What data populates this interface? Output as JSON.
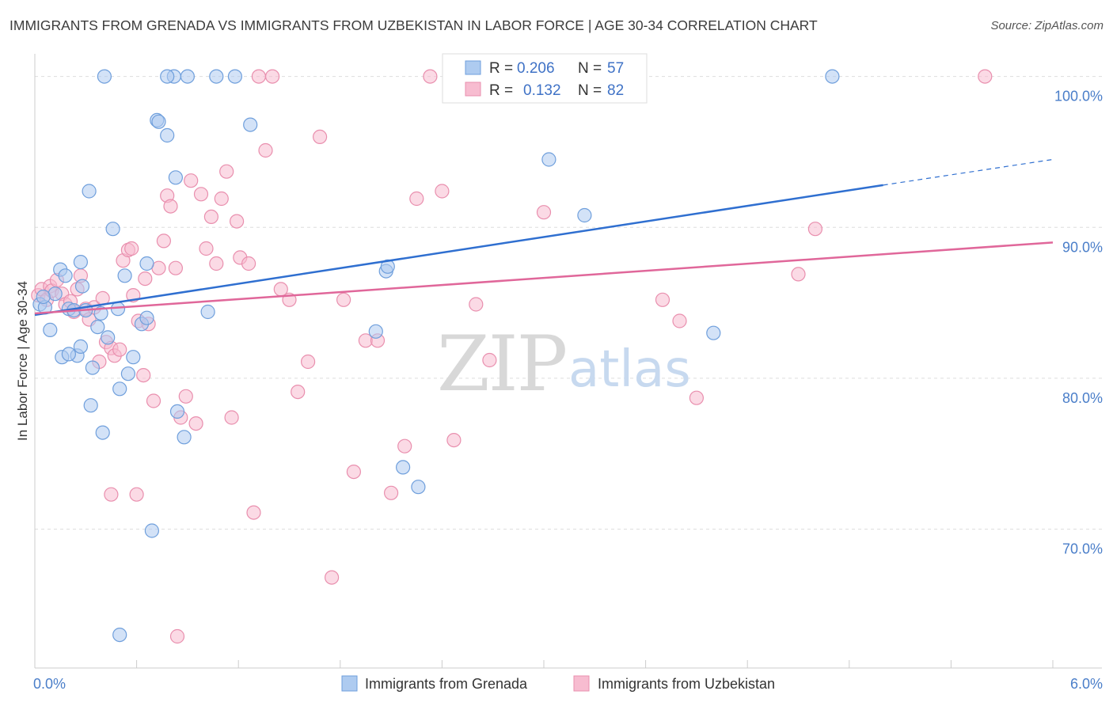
{
  "title": "IMMIGRANTS FROM GRENADA VS IMMIGRANTS FROM UZBEKISTAN IN LABOR FORCE | AGE 30-34 CORRELATION CHART",
  "source": "Source: ZipAtlas.com",
  "watermark": {
    "zip": "ZIP",
    "atlas": "atlas"
  },
  "colors": {
    "grenada_fill": "#aecbf0",
    "grenada_stroke": "#6f9fdc",
    "grenada_line": "#2f6fd0",
    "uzbek_fill": "#f7bcd0",
    "uzbek_stroke": "#e98fae",
    "uzbek_line": "#e0679a",
    "tick_text": "#4a7ec9",
    "grid": "#dddddd"
  },
  "legend": {
    "rows": [
      {
        "r_label": "R =",
        "r_value": "0.206",
        "n_label": "N =",
        "n_value": "57",
        "series": "grenada"
      },
      {
        "r_label": "R =",
        "r_value": "0.132",
        "n_label": "N =",
        "n_value": "82",
        "series": "uzbek"
      }
    ]
  },
  "chart_data": {
    "type": "scatter",
    "xlabel": "",
    "ylabel": "In Labor Force | Age 30-34",
    "xlim": [
      0,
      6
    ],
    "ylim": [
      60.8,
      101.5
    ],
    "x_tick_labels": [
      {
        "value": 0,
        "label": "0.0%"
      },
      {
        "value": 6,
        "label": "6.0%"
      }
    ],
    "y_ticks": [
      {
        "value": 70,
        "label": "70.0%"
      },
      {
        "value": 80,
        "label": "80.0%"
      },
      {
        "value": 90,
        "label": "90.0%"
      },
      {
        "value": 100,
        "label": "100.0%"
      }
    ],
    "grid": "horizontal dashed",
    "legend_position": "top-center",
    "series": [
      {
        "name": "Immigrants from Grenada",
        "key": "grenada",
        "trend": {
          "x0": 0,
          "y0": 84.2,
          "x1": 5.0,
          "y1": 92.8,
          "dashed_to_x": 6.0,
          "dashed_to_y": 94.5
        },
        "points": [
          [
            0.03,
            84.9
          ],
          [
            0.06,
            84.7
          ],
          [
            0.09,
            83.2
          ],
          [
            0.12,
            85.6
          ],
          [
            0.15,
            87.2
          ],
          [
            0.18,
            86.8
          ],
          [
            0.2,
            84.6
          ],
          [
            0.23,
            84.5
          ],
          [
            0.25,
            81.5
          ],
          [
            0.28,
            86.1
          ],
          [
            0.16,
            81.4
          ],
          [
            0.2,
            81.6
          ],
          [
            0.27,
            82.1
          ],
          [
            0.3,
            84.5
          ],
          [
            0.34,
            80.7
          ],
          [
            0.37,
            83.4
          ],
          [
            0.39,
            84.3
          ],
          [
            0.43,
            82.7
          ],
          [
            0.46,
            89.9
          ],
          [
            0.49,
            84.6
          ],
          [
            0.53,
            86.8
          ],
          [
            0.55,
            80.3
          ],
          [
            0.58,
            81.4
          ],
          [
            0.5,
            79.3
          ],
          [
            0.63,
            83.6
          ],
          [
            0.66,
            84.0
          ],
          [
            0.66,
            87.6
          ],
          [
            0.69,
            69.9
          ],
          [
            0.72,
            97.1
          ],
          [
            0.78,
            96.1
          ],
          [
            0.83,
            93.3
          ],
          [
            0.84,
            77.8
          ],
          [
            0.88,
            76.1
          ],
          [
            0.9,
            100.0
          ],
          [
            0.82,
            100.0
          ],
          [
            1.07,
            100.0
          ],
          [
            1.02,
            84.4
          ],
          [
            1.18,
            100.0
          ],
          [
            1.27,
            96.8
          ],
          [
            0.32,
            92.4
          ],
          [
            0.41,
            100.0
          ],
          [
            0.73,
            97.0
          ],
          [
            0.27,
            87.7
          ],
          [
            0.33,
            78.2
          ],
          [
            0.4,
            76.4
          ],
          [
            0.5,
            63.0
          ],
          [
            2.01,
            83.1
          ],
          [
            2.07,
            87.1
          ],
          [
            2.08,
            87.4
          ],
          [
            2.17,
            74.1
          ],
          [
            2.26,
            72.8
          ],
          [
            3.03,
            94.5
          ],
          [
            3.24,
            90.8
          ],
          [
            4.0,
            83.0
          ],
          [
            4.7,
            100.0
          ],
          [
            0.78,
            100.0
          ],
          [
            0.05,
            85.4
          ]
        ]
      },
      {
        "name": "Immigrants from Uzbekistan",
        "key": "uzbek",
        "trend": {
          "x0": 0,
          "y0": 84.3,
          "x1": 6.0,
          "y1": 89.0
        },
        "points": [
          [
            0.02,
            85.5
          ],
          [
            0.04,
            85.9
          ],
          [
            0.07,
            85.2
          ],
          [
            0.09,
            86.1
          ],
          [
            0.1,
            85.8
          ],
          [
            0.13,
            86.5
          ],
          [
            0.16,
            85.6
          ],
          [
            0.18,
            84.9
          ],
          [
            0.21,
            85.1
          ],
          [
            0.23,
            84.4
          ],
          [
            0.25,
            85.9
          ],
          [
            0.27,
            86.8
          ],
          [
            0.3,
            84.6
          ],
          [
            0.32,
            83.9
          ],
          [
            0.35,
            84.7
          ],
          [
            0.38,
            81.1
          ],
          [
            0.4,
            85.3
          ],
          [
            0.42,
            82.4
          ],
          [
            0.45,
            82.0
          ],
          [
            0.47,
            81.5
          ],
          [
            0.5,
            81.9
          ],
          [
            0.52,
            87.8
          ],
          [
            0.55,
            88.5
          ],
          [
            0.58,
            85.5
          ],
          [
            0.61,
            83.8
          ],
          [
            0.64,
            80.2
          ],
          [
            0.67,
            83.6
          ],
          [
            0.7,
            78.5
          ],
          [
            0.73,
            87.3
          ],
          [
            0.76,
            89.1
          ],
          [
            0.78,
            92.1
          ],
          [
            0.8,
            91.4
          ],
          [
            0.83,
            87.3
          ],
          [
            0.86,
            77.4
          ],
          [
            0.89,
            78.8
          ],
          [
            0.92,
            93.1
          ],
          [
            0.95,
            77.0
          ],
          [
            0.98,
            92.2
          ],
          [
            1.01,
            88.6
          ],
          [
            1.04,
            90.7
          ],
          [
            1.07,
            87.6
          ],
          [
            1.1,
            91.9
          ],
          [
            1.13,
            93.7
          ],
          [
            1.16,
            77.4
          ],
          [
            1.19,
            90.4
          ],
          [
            1.21,
            88.0
          ],
          [
            1.26,
            87.6
          ],
          [
            1.29,
            71.1
          ],
          [
            1.32,
            100.0
          ],
          [
            1.36,
            95.1
          ],
          [
            1.4,
            100.0
          ],
          [
            1.45,
            85.9
          ],
          [
            1.5,
            85.2
          ],
          [
            1.55,
            79.1
          ],
          [
            1.61,
            81.1
          ],
          [
            1.68,
            96.0
          ],
          [
            1.75,
            66.8
          ],
          [
            1.82,
            85.2
          ],
          [
            1.88,
            73.8
          ],
          [
            1.95,
            82.5
          ],
          [
            2.02,
            82.5
          ],
          [
            2.1,
            72.4
          ],
          [
            2.18,
            75.5
          ],
          [
            2.25,
            91.9
          ],
          [
            2.33,
            100.0
          ],
          [
            2.4,
            92.4
          ],
          [
            2.47,
            75.9
          ],
          [
            2.6,
            84.9
          ],
          [
            2.68,
            81.2
          ],
          [
            2.8,
            100.0
          ],
          [
            3.0,
            91.0
          ],
          [
            3.7,
            85.2
          ],
          [
            3.8,
            83.8
          ],
          [
            3.9,
            78.7
          ],
          [
            4.5,
            86.9
          ],
          [
            4.6,
            89.9
          ],
          [
            5.6,
            100.0
          ],
          [
            0.6,
            72.3
          ],
          [
            0.45,
            72.3
          ],
          [
            0.57,
            88.6
          ],
          [
            0.65,
            86.6
          ],
          [
            0.84,
            62.9
          ]
        ]
      }
    ]
  },
  "bottom_legend": {
    "grenada_label": "Immigrants from Grenada",
    "uzbek_label": "Immigrants from Uzbekistan"
  }
}
